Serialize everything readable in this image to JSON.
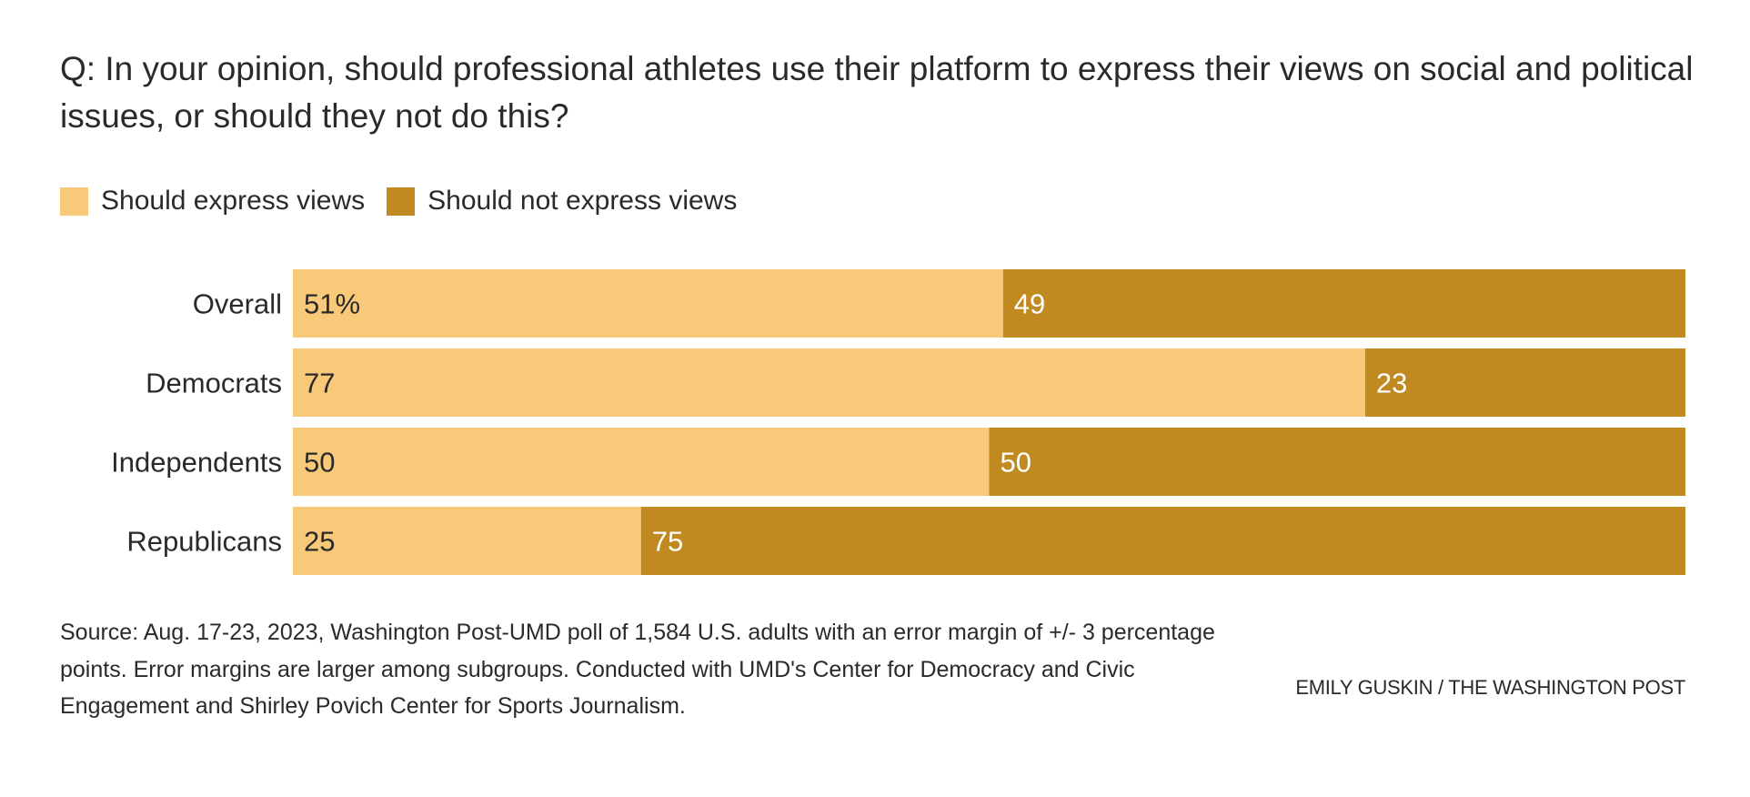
{
  "title": "Q: In your opinion, should professional athletes use their platform to express their views on social and political issues, or should they not do this?",
  "source": "Source: Aug. 17-23, 2023, Washington Post-UMD poll of 1,584 U.S. adults with an error margin of +/- 3 percentage points. Error margins are larger among subgroups. Conducted with UMD's Center for Democracy and Civic Engagement and Shirley Povich Center for Sports Journalism.",
  "credit": "EMILY GUSKIN / THE WASHINGTON POST",
  "chart_data": {
    "type": "bar",
    "orientation": "horizontal",
    "stacked": true,
    "categories": [
      "Overall",
      "Democrats",
      "Independents",
      "Republicans"
    ],
    "series": [
      {
        "name": "Should express views",
        "values": [
          51,
          77,
          50,
          25
        ],
        "labels": [
          "51%",
          "77",
          "50",
          "25"
        ],
        "color": "#f7c978"
      },
      {
        "name": "Should not express views",
        "values": [
          49,
          23,
          50,
          75
        ],
        "labels": [
          "49",
          "23",
          "50",
          "75"
        ],
        "color": "#c08a20"
      }
    ],
    "xlim": [
      0,
      100
    ],
    "grid": false,
    "legend": "top-left"
  }
}
